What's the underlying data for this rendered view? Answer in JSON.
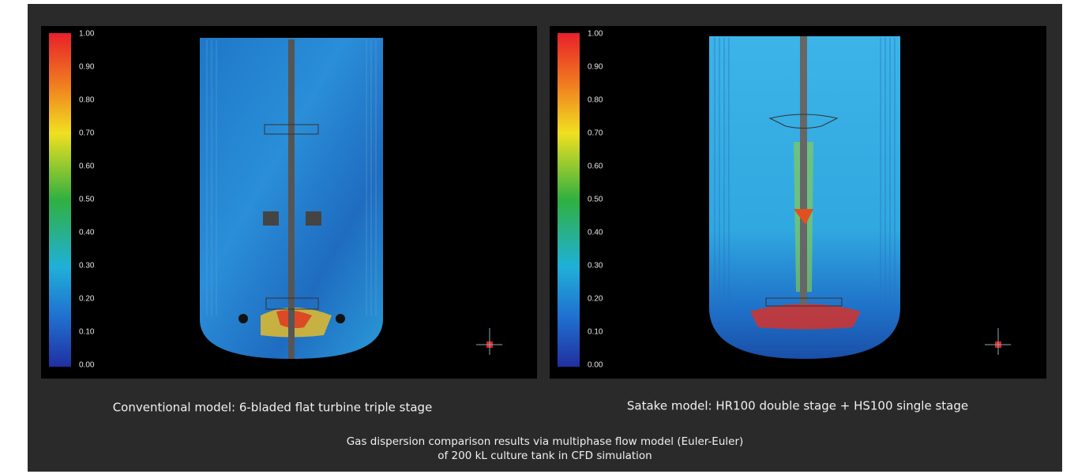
{
  "panels": [
    {
      "colorbar_ticks": [
        "1.00",
        "0.90",
        "0.80",
        "0.70",
        "0.60",
        "0.50",
        "0.40",
        "0.30",
        "0.20",
        "0.10",
        "0.00"
      ],
      "caption": "Conventional model: 6-bladed flat turbine triple stage"
    },
    {
      "colorbar_ticks": [
        "1.00",
        "0.90",
        "0.80",
        "0.70",
        "0.60",
        "0.50",
        "0.40",
        "0.30",
        "0.20",
        "0.10",
        "0.00"
      ],
      "caption": "Satake model: HR100 double stage + HS100 single stage"
    }
  ],
  "caption": {
    "line1": "Gas dispersion comparison results via multiphase flow model (Euler-Euler)",
    "line2": "of 200 kL culture tank in CFD simulation"
  }
}
